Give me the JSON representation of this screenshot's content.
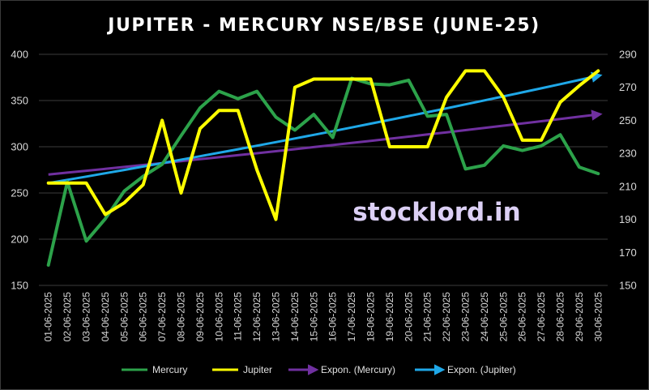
{
  "chart_data": {
    "type": "line",
    "title": "JUPITER -  MERCURY NSE/BSE (JUNE-25)",
    "watermark": "stocklord.in",
    "categories": [
      "01-06-2025",
      "02-06-2025",
      "03-06-2025",
      "04-06-2025",
      "05-06-2025",
      "06-06-2025",
      "07-06-2025",
      "08-06-2025",
      "09-06-2025",
      "10-06-2025",
      "11-06-2025",
      "12-06-2025",
      "13-06-2025",
      "14-06-2025",
      "15-06-2025",
      "16-06-2025",
      "17-06-2025",
      "18-06-2025",
      "19-06-2025",
      "20-06-2025",
      "21-06-2025",
      "22-06-2025",
      "23-06-2025",
      "24-06-2025",
      "25-06-2025",
      "26-06-2025",
      "27-06-2025",
      "28-06-2025",
      "29-06-2025",
      "30-06-2025"
    ],
    "y_left": {
      "min": 150,
      "max": 400,
      "ticks": [
        150,
        200,
        250,
        300,
        350,
        400
      ]
    },
    "y_right": {
      "min": 150,
      "max": 290,
      "ticks": [
        150,
        170,
        190,
        210,
        230,
        250,
        270,
        290
      ]
    },
    "grid": true,
    "legend_position": "bottom",
    "series": [
      {
        "name": "Mercury",
        "axis": "left",
        "color": "#2ca24a",
        "values": [
          172,
          262,
          198,
          222,
          252,
          268,
          281,
          312,
          342,
          360,
          352,
          360,
          332,
          318,
          335,
          310,
          374,
          368,
          367,
          372,
          333,
          335,
          276,
          280,
          301,
          296,
          301,
          313,
          278,
          271
        ]
      },
      {
        "name": "Jupiter",
        "axis": "right",
        "color": "#ffff00",
        "values": [
          212,
          212,
          212,
          193,
          200,
          211,
          250,
          206,
          245,
          256,
          256,
          220,
          190,
          270,
          275,
          275,
          275,
          275,
          234,
          234,
          234,
          264,
          280,
          280,
          264,
          238,
          238,
          261,
          271,
          280
        ]
      }
    ],
    "trendlines": [
      {
        "name": "Expon. (Mercury)",
        "type": "exponential",
        "axis": "left",
        "color": "#7030a0",
        "start": 270,
        "end": 335
      },
      {
        "name": "Expon. (Jupiter)",
        "type": "exponential",
        "axis": "right",
        "color": "#1fa8e8",
        "start": 212,
        "end": 277
      }
    ]
  }
}
